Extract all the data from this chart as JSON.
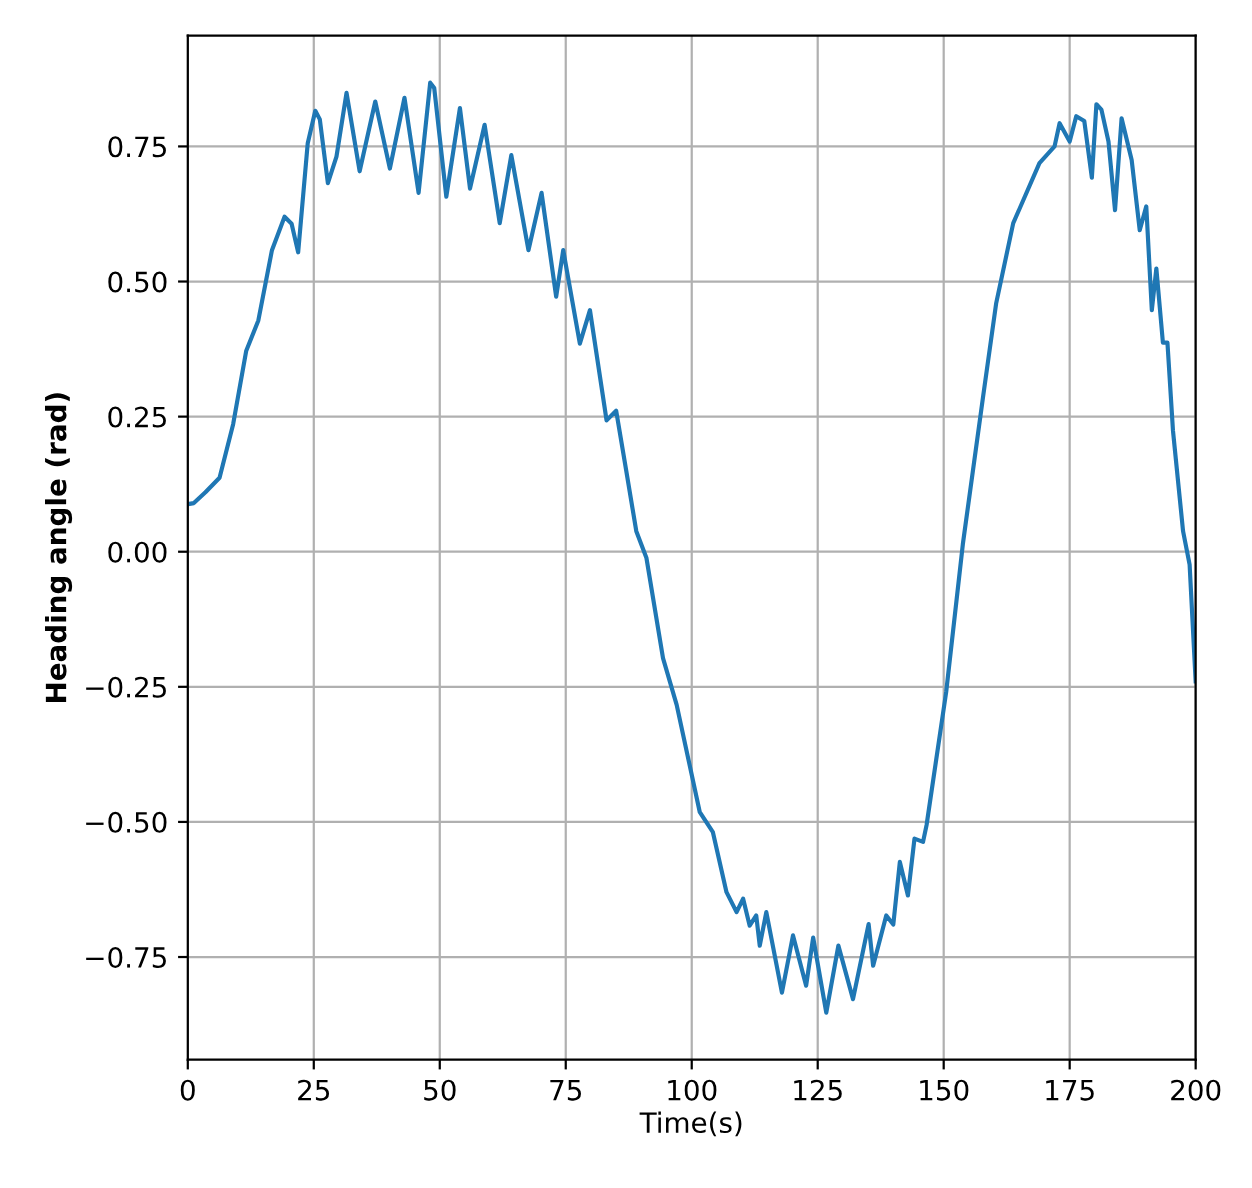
{
  "chart_data": {
    "type": "line",
    "xlabel": "Time(s)",
    "ylabel": "Heading angle (rad)",
    "xlim": [
      0,
      200
    ],
    "ylim": [
      -0.94,
      0.955
    ],
    "xticks": [
      0,
      25,
      50,
      75,
      100,
      125,
      150,
      175,
      200
    ],
    "yticks": [
      {
        "value": -0.75,
        "label": "−0.75"
      },
      {
        "value": -0.5,
        "label": "−0.50"
      },
      {
        "value": -0.25,
        "label": "−0.25"
      },
      {
        "value": 0,
        "label": "0.00"
      },
      {
        "value": 0.25,
        "label": "0.25"
      },
      {
        "value": 0.5,
        "label": "0.50"
      },
      {
        "value": 0.75,
        "label": "0.75"
      }
    ],
    "grid": true,
    "series": [
      {
        "color": "#1f77b4",
        "x": [
          0,
          1.2,
          3.5,
          6.3,
          9.0,
          11.6,
          14.0,
          16.7,
          19.2,
          20.6,
          21.9,
          23.8,
          25.3,
          26.2,
          27.8,
          29.5,
          31.5,
          34.1,
          37.2,
          40.1,
          43.0,
          45.8,
          48.1,
          48.9,
          51.3,
          54.0,
          56.0,
          58.9,
          61.9,
          64.2,
          67.6,
          70.2,
          73.1,
          74.5,
          77.8,
          79.8,
          83.1,
          85.0,
          87.0,
          89.0,
          91.0,
          94.3,
          97.0,
          101.6,
          104.2,
          106.9,
          108.9,
          110.2,
          111.5,
          112.8,
          113.5,
          114.8,
          117.9,
          120.1,
          122.7,
          124.1,
          126.7,
          129.1,
          132.0,
          135.1,
          136.0,
          138.6,
          140.0,
          141.3,
          142.9,
          144.2,
          145.9,
          146.6,
          150.5,
          153.8,
          157.8,
          160.4,
          163.8,
          169.0,
          172.0,
          173.0,
          175.0,
          176.3,
          177.9,
          179.4,
          180.3,
          181.3,
          182.7,
          184.0,
          185.3,
          187.3,
          188.9,
          190.2,
          191.3,
          192.2,
          193.5,
          194.4,
          195.5,
          197.5,
          198.8,
          200
        ],
        "values": [
          0.088,
          0.09,
          0.11,
          0.137,
          0.236,
          0.372,
          0.428,
          0.558,
          0.62,
          0.607,
          0.554,
          0.756,
          0.816,
          0.8,
          0.682,
          0.731,
          0.849,
          0.704,
          0.833,
          0.709,
          0.84,
          0.664,
          0.868,
          0.858,
          0.657,
          0.821,
          0.672,
          0.79,
          0.608,
          0.734,
          0.558,
          0.664,
          0.472,
          0.558,
          0.385,
          0.447,
          0.243,
          0.261,
          0.15,
          0.038,
          -0.011,
          -0.197,
          -0.283,
          -0.482,
          -0.519,
          -0.63,
          -0.667,
          -0.642,
          -0.692,
          -0.673,
          -0.729,
          -0.667,
          -0.816,
          -0.71,
          -0.803,
          -0.714,
          -0.853,
          -0.729,
          -0.828,
          -0.689,
          -0.766,
          -0.673,
          -0.69,
          -0.574,
          -0.636,
          -0.531,
          -0.537,
          -0.506,
          -0.259,
          0.014,
          0.286,
          0.459,
          0.608,
          0.719,
          0.75,
          0.793,
          0.759,
          0.806,
          0.797,
          0.692,
          0.828,
          0.818,
          0.759,
          0.632,
          0.802,
          0.725,
          0.595,
          0.639,
          0.447,
          0.524,
          0.387,
          0.387,
          0.224,
          0.038,
          -0.024,
          -0.24
        ]
      }
    ]
  }
}
